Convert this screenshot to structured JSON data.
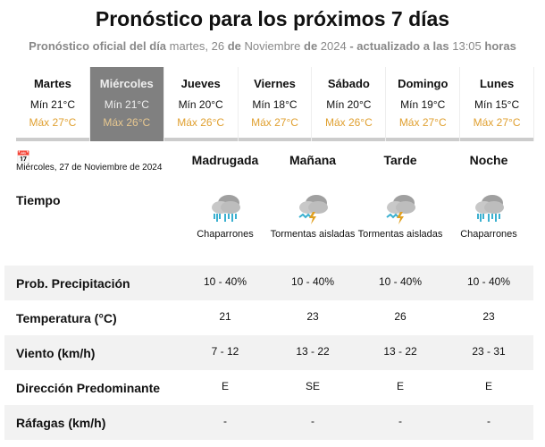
{
  "title": "Pronóstico para los próximos 7 días",
  "subtitle": {
    "p1": "Pronóstico oficial del día",
    "date1": "martes, 26",
    "p2": "de",
    "month": "Noviembre",
    "p3": "de",
    "year": "2024",
    "p4": "- actualizado a las",
    "time": "13:05",
    "p5": "horas"
  },
  "days": [
    {
      "name": "Martes",
      "min": "Mín 21°C",
      "max": "Máx 27°C"
    },
    {
      "name": "Miércoles",
      "min": "Mín 21°C",
      "max": "Máx 26°C",
      "selected": true
    },
    {
      "name": "Jueves",
      "min": "Mín 20°C",
      "max": "Máx 26°C"
    },
    {
      "name": "Viernes",
      "min": "Mín 18°C",
      "max": "Máx 27°C"
    },
    {
      "name": "Sábado",
      "min": "Mín 20°C",
      "max": "Máx 26°C"
    },
    {
      "name": "Domingo",
      "min": "Mín 19°C",
      "max": "Máx 27°C"
    },
    {
      "name": "Lunes",
      "min": "Mín 15°C",
      "max": "Máx 27°C"
    }
  ],
  "detail": {
    "date": "Miércoles, 27 de Noviembre de 2024",
    "periods": [
      "Madrugada",
      "Mañana",
      "Tarde",
      "Noche"
    ],
    "weather_label": "Tiempo",
    "weather": [
      {
        "desc": "Chaparrones",
        "icon": "rain-cloud-icon"
      },
      {
        "desc": "Tormentas aisladas",
        "icon": "thunderstorm-icon"
      },
      {
        "desc": "Tormentas aisladas",
        "icon": "thunderstorm-icon"
      },
      {
        "desc": "Chaparrones",
        "icon": "rain-cloud-icon"
      }
    ],
    "rows": [
      {
        "label": "Prob. Precipitación",
        "values": [
          "10 - 40%",
          "10 - 40%",
          "10 - 40%",
          "10 - 40%"
        ]
      },
      {
        "label": "Temperatura (°C)",
        "values": [
          "21",
          "23",
          "26",
          "23"
        ]
      },
      {
        "label": "Viento (km/h)",
        "values": [
          "7 - 12",
          "13 - 22",
          "13 - 22",
          "23 - 31"
        ]
      },
      {
        "label": "Dirección Predominante",
        "values": [
          "E",
          "SE",
          "E",
          "E"
        ]
      },
      {
        "label": "Ráfagas (km/h)",
        "values": [
          "-",
          "-",
          "-",
          "-"
        ]
      }
    ]
  },
  "colors": {
    "max_temp": "#e0a030",
    "selected_day": "#808080",
    "rain": "#3ab0d0",
    "bolt": "#e0a020"
  }
}
